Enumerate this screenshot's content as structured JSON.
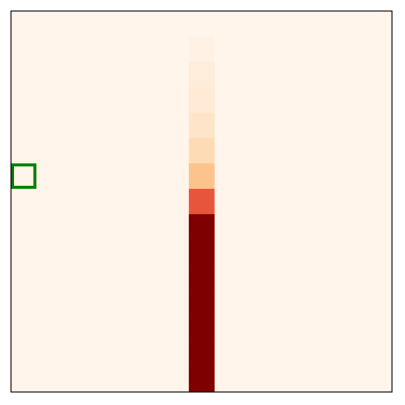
{
  "chart_data": {
    "type": "heatmap",
    "rows": 15,
    "cols": 15,
    "grid": false,
    "legend": "none",
    "colormap": "OrRd",
    "background_color": "#fff5eb",
    "frame_color": "#000000",
    "highlight_color": "#008000",
    "highlight_cell": {
      "row": 6,
      "col": 0
    },
    "column_7_values": [
      0,
      0.02,
      0.05,
      0.06,
      0.09,
      0.13,
      0.3,
      0.62,
      1,
      1,
      1,
      1,
      1,
      1,
      1
    ],
    "column_7_colors": [
      "#fff5eb",
      "#fff2e4",
      "#feedda",
      "#feead5",
      "#fee4c8",
      "#fddbb4",
      "#fdc38c",
      "#e8553d",
      "#7f0000",
      "#7f0000",
      "#7f0000",
      "#7f0000",
      "#7f0000",
      "#7f0000",
      "#7f0000"
    ]
  }
}
